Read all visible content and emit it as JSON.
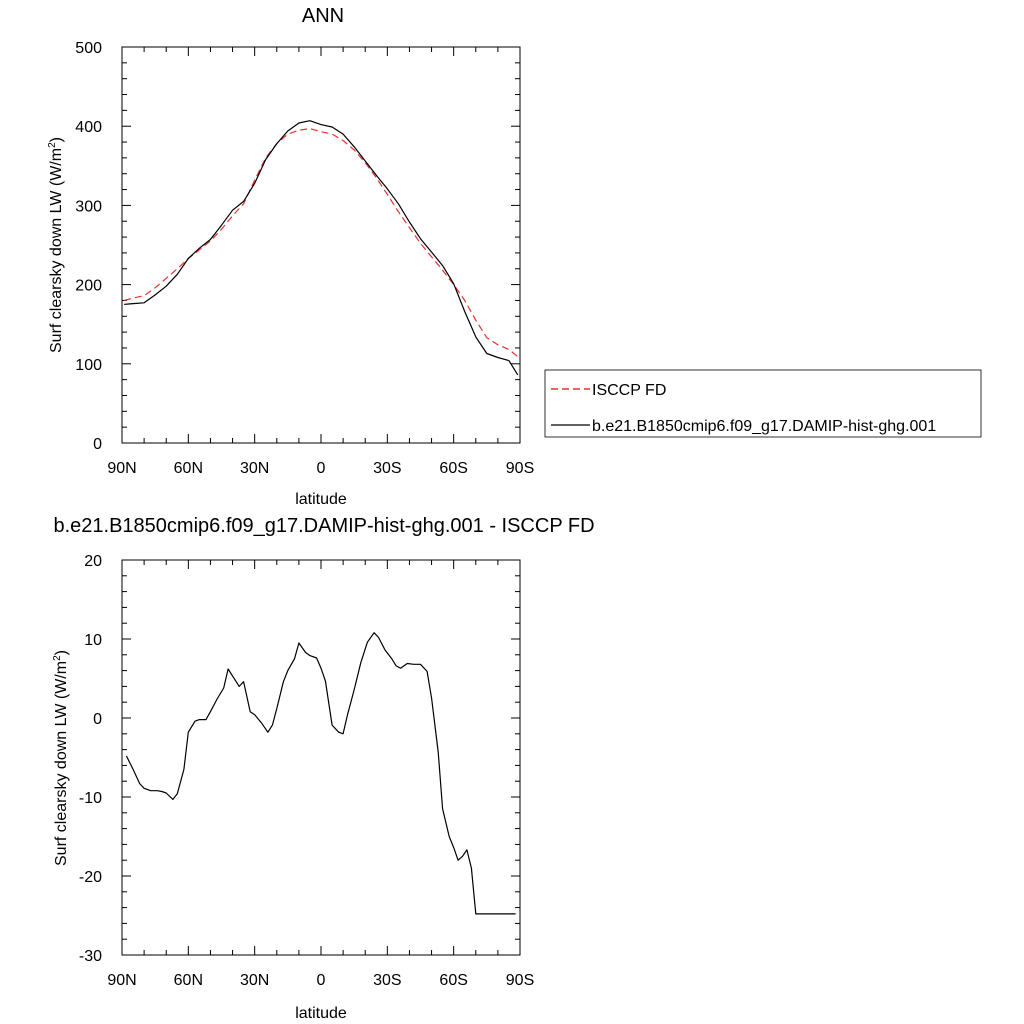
{
  "chart_data": [
    {
      "type": "line",
      "title": "ANN",
      "xlabel": "latitude",
      "ylabel": "Surf clearsky down LW (W/m²)",
      "ylabel_main": "Surf clearsky down LW (W/m",
      "ylabel_sup": "2",
      "ylabel_tail": ")",
      "xlim": [
        90,
        -90
      ],
      "ylim": [
        0,
        500
      ],
      "xticks": [
        90,
        60,
        30,
        0,
        -30,
        -60,
        -90
      ],
      "xtick_labels": [
        "90N",
        "60N",
        "30N",
        "0",
        "30S",
        "60S",
        "90S"
      ],
      "yticks": [
        0,
        100,
        200,
        300,
        400,
        500
      ],
      "ytick_labels": [
        "0",
        "100",
        "200",
        "300",
        "400",
        "500"
      ],
      "grid": false,
      "legend": "right",
      "series": [
        {
          "name": "ISCCP FD",
          "color": "#e8312f",
          "dash": "dashed",
          "x": [
            89,
            85,
            80,
            75,
            70,
            65,
            60,
            55,
            50,
            45,
            40,
            35,
            30,
            25,
            20,
            15,
            10,
            5,
            0,
            -5,
            -10,
            -15,
            -20,
            -25,
            -30,
            -35,
            -40,
            -45,
            -50,
            -55,
            -60,
            -65,
            -70,
            -75,
            -80,
            -85,
            -89
          ],
          "y": [
            180,
            183,
            186,
            196,
            208,
            220,
            233,
            244,
            255,
            270,
            287,
            302,
            332,
            360,
            378,
            390,
            395,
            397,
            393,
            390,
            382,
            370,
            354,
            335,
            314,
            292,
            272,
            252,
            235,
            218,
            200,
            180,
            155,
            133,
            124,
            118,
            109
          ]
        },
        {
          "name": "b.e21.B1850cmip6.f09_g17.DAMIP-hist-ghg.001",
          "color": "#000000",
          "dash": "solid",
          "x": [
            89,
            85,
            80,
            75,
            70,
            65,
            60,
            55,
            50,
            45,
            40,
            35,
            30,
            25,
            20,
            15,
            10,
            5,
            0,
            -5,
            -10,
            -15,
            -20,
            -25,
            -30,
            -35,
            -40,
            -45,
            -50,
            -55,
            -60,
            -65,
            -70,
            -75,
            -80,
            -85,
            -89
          ],
          "y": [
            175,
            176,
            177,
            187,
            198,
            213,
            233,
            246,
            257,
            275,
            294,
            305,
            328,
            358,
            378,
            394,
            404,
            407,
            402,
            399,
            390,
            374,
            356,
            338,
            321,
            302,
            279,
            258,
            241,
            224,
            201,
            166,
            134,
            113,
            108,
            104,
            86
          ]
        }
      ]
    },
    {
      "type": "line",
      "title": "b.e21.B1850cmip6.f09_g17.DAMIP-hist-ghg.001 - ISCCP FD",
      "xlabel": "latitude",
      "ylabel": "Surf clearsky down LW (W/m²)",
      "ylabel_main": "Surf clearsky down LW (W/m",
      "ylabel_sup": "2",
      "ylabel_tail": ")",
      "xlim": [
        90,
        -90
      ],
      "ylim": [
        -30,
        20
      ],
      "xticks": [
        90,
        60,
        30,
        0,
        -30,
        -60,
        -90
      ],
      "xtick_labels": [
        "90N",
        "60N",
        "30N",
        "0",
        "30S",
        "60S",
        "90S"
      ],
      "yticks": [
        -30,
        -20,
        -10,
        0,
        10,
        20
      ],
      "ytick_labels": [
        "-30",
        "-20",
        "-10",
        "0",
        "10",
        "20"
      ],
      "grid": false,
      "series": [
        {
          "color": "#000000",
          "dash": "solid",
          "x": [
            88,
            85,
            82,
            80,
            77,
            74,
            72,
            70,
            67,
            65,
            62,
            60,
            57,
            55,
            52,
            50,
            47,
            44,
            42,
            40,
            37,
            35,
            32,
            30,
            27,
            24,
            22,
            20,
            17,
            15,
            12,
            10,
            7,
            5,
            2,
            0,
            -2,
            -5,
            -8,
            -10,
            -12,
            -15,
            -18,
            -21,
            -24,
            -26,
            -29,
            -32,
            -34,
            -36,
            -39,
            -42,
            -45,
            -48,
            -50,
            -53,
            -55,
            -58,
            -60,
            -62,
            -64,
            -66,
            -68,
            -70,
            -72,
            -74,
            -76,
            -78,
            -80,
            -83,
            -86,
            -88
          ],
          "y": [
            -4.8,
            -6.5,
            -8.3,
            -8.9,
            -9.2,
            -9.2,
            -9.3,
            -9.5,
            -10.3,
            -9.6,
            -6.5,
            -1.8,
            -0.4,
            -0.2,
            -0.2,
            0.8,
            2.4,
            3.8,
            6.2,
            5.3,
            4.0,
            4.6,
            0.8,
            0.4,
            -0.6,
            -1.8,
            -0.9,
            1.2,
            4.6,
            6.0,
            7.5,
            9.5,
            8.3,
            7.9,
            7.6,
            6.3,
            4.7,
            -0.9,
            -1.8,
            -2.0,
            0.4,
            3.6,
            7.0,
            9.6,
            10.8,
            10.2,
            8.6,
            7.5,
            6.6,
            6.3,
            6.9,
            6.8,
            6.8,
            5.9,
            2.5,
            -4.3,
            -11.5,
            -15.0,
            -16.4,
            -18.0,
            -17.5,
            -16.7,
            -19.0,
            -24.8,
            -24.8,
            -24.8,
            -24.8,
            -24.8,
            -24.8,
            -24.8,
            -24.8,
            -24.8
          ]
        }
      ]
    }
  ]
}
